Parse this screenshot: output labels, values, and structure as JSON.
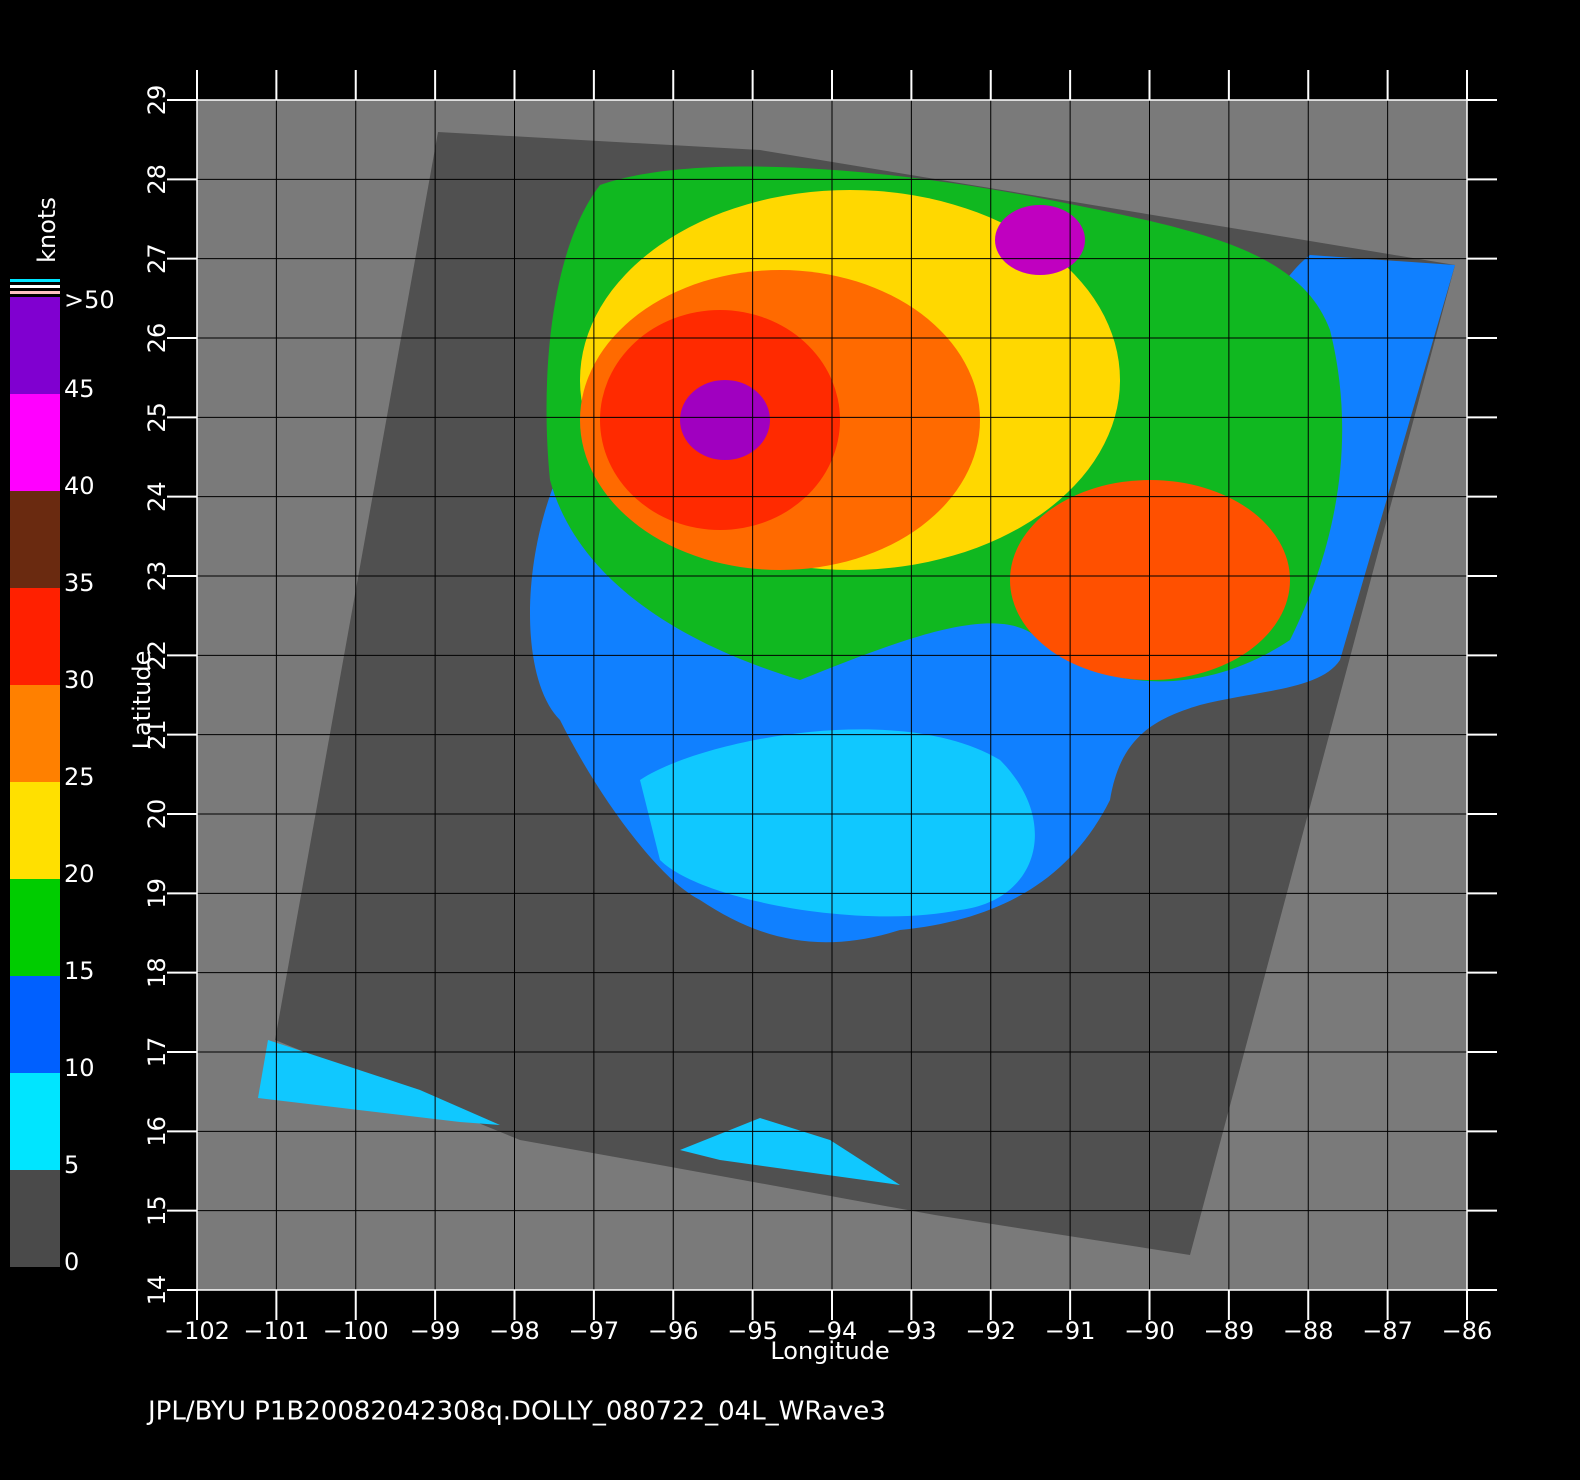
{
  "map": {
    "footer": "JPL/BYU  P1B20082042308q.DOLLY_080722_04L_WRave3",
    "x_axis": {
      "label": "Longitude",
      "lim": [
        -102,
        -86
      ],
      "ticks": [
        {
          "value": -102,
          "label": "−102"
        },
        {
          "value": -101,
          "label": "−101"
        },
        {
          "value": -100,
          "label": "−100"
        },
        {
          "value": -99,
          "label": "−99"
        },
        {
          "value": -98,
          "label": "−98"
        },
        {
          "value": -97,
          "label": "−97"
        },
        {
          "value": -96,
          "label": "−96"
        },
        {
          "value": -95,
          "label": "−95"
        },
        {
          "value": -94,
          "label": "−94"
        },
        {
          "value": -93,
          "label": "−93"
        },
        {
          "value": -92,
          "label": "−92"
        },
        {
          "value": -91,
          "label": "−91"
        },
        {
          "value": -90,
          "label": "−90"
        },
        {
          "value": -89,
          "label": "−89"
        },
        {
          "value": -88,
          "label": "−88"
        },
        {
          "value": -87,
          "label": "−87"
        },
        {
          "value": -86,
          "label": "−86"
        }
      ]
    },
    "y_axis": {
      "label": "Latitude",
      "lim": [
        14,
        29
      ],
      "ticks": [
        14,
        15,
        16,
        17,
        18,
        19,
        20,
        21,
        22,
        23,
        24,
        25,
        26,
        27,
        28,
        29
      ]
    },
    "colorbar": {
      "label": "knots",
      "levels": [
        0,
        5,
        10,
        15,
        20,
        25,
        30,
        35,
        40,
        45,
        {
          "value": 50,
          "label": ">50"
        }
      ],
      "colors": [
        "#4a4a4a",
        "#00e5ff",
        "#0060ff",
        "#00cc00",
        "#ffe000",
        "#ff8000",
        "#ff2000",
        "#6a2a10",
        "#ff00ff",
        "#8000d0"
      ]
    }
  }
}
